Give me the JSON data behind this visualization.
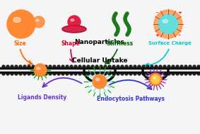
{
  "bg_color": "#f5f5f5",
  "title": "Nanoparticles",
  "label_size": "Size",
  "label_shape": "Shape",
  "label_stiffness": "Stiffness",
  "label_surface": "Surface Charge",
  "label_cellular": "Cellular Uptake",
  "label_ligands": "Ligands Density",
  "label_endo": "Endocytosis Pathways",
  "color_size": "#FF6600",
  "color_shape": "#CC0033",
  "color_stiffness": "#006600",
  "color_surface": "#00CCCC",
  "color_cellular": "#000000",
  "color_ligands": "#6633CC",
  "color_endo": "#3333CC",
  "orange_sphere": "#FF8833",
  "red_sphere": "#CC1133",
  "green_rod": "#1A7A1A",
  "cyan_sphere": "#66DDDD",
  "membrane_color": "#111111"
}
